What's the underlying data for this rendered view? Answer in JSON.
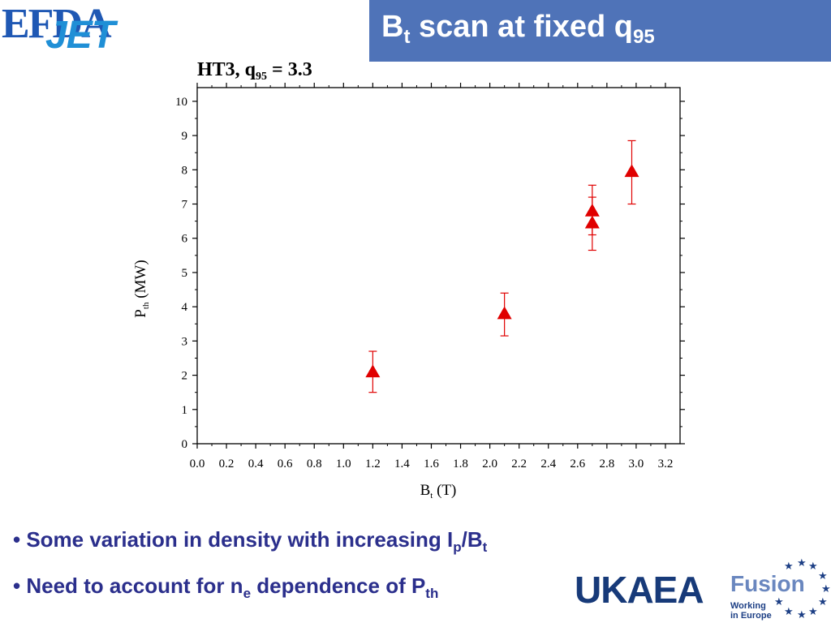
{
  "header": {
    "logo_efda": "EFDA",
    "logo_jet": "JET",
    "title_main": "B",
    "title_sub_t": "t",
    "title_rest": " scan at fixed q",
    "title_sub_95": "95",
    "colors": {
      "title_bar": "#4f73b8",
      "title_text": "#ffffff"
    }
  },
  "chart_data": {
    "type": "scatter",
    "title_main": "HT3, q",
    "title_sub": "95",
    "title_rest": " = 3.3",
    "xlabel_main": "B",
    "xlabel_sub": "t",
    "xlabel_rest": " (T)",
    "ylabel_main": "P",
    "ylabel_sub": "th",
    "ylabel_rest": " (MW)",
    "xlim": [
      0.0,
      3.3
    ],
    "ylim": [
      0,
      10.4
    ],
    "x_ticks": [
      "0.0",
      "0.2",
      "0.4",
      "0.6",
      "0.8",
      "1.0",
      "1.2",
      "1.4",
      "1.6",
      "1.8",
      "2.0",
      "2.2",
      "2.4",
      "2.6",
      "2.8",
      "3.0",
      "3.2"
    ],
    "y_ticks": [
      "0",
      "1",
      "2",
      "3",
      "4",
      "5",
      "6",
      "7",
      "8",
      "9",
      "10"
    ],
    "grid": false,
    "marker": "triangle",
    "marker_color": "#e00000",
    "points": [
      {
        "x": 1.2,
        "y": 2.1,
        "ylow": 1.5,
        "yhigh": 2.7
      },
      {
        "x": 2.1,
        "y": 3.8,
        "ylow": 3.15,
        "yhigh": 4.4
      },
      {
        "x": 2.7,
        "y": 6.8,
        "ylow": 6.1,
        "yhigh": 7.55
      },
      {
        "x": 2.7,
        "y": 6.45,
        "ylow": 5.65,
        "yhigh": 7.2
      },
      {
        "x": 2.97,
        "y": 7.95,
        "ylow": 7.0,
        "yhigh": 8.85
      }
    ]
  },
  "bullets": [
    {
      "text": "• Some variation in density with increasing I",
      "sub1": "p",
      "mid": "/B",
      "sub2": "t",
      "end": ""
    },
    {
      "text": "• Need to account for n",
      "sub1": "e",
      "mid": " dependence of P",
      "sub2": "th",
      "end": ""
    }
  ],
  "footer": {
    "ukaea": "UKAEA",
    "fusion": "Fusion",
    "fusion_line1": "Working",
    "fusion_line2": "in Europe"
  }
}
